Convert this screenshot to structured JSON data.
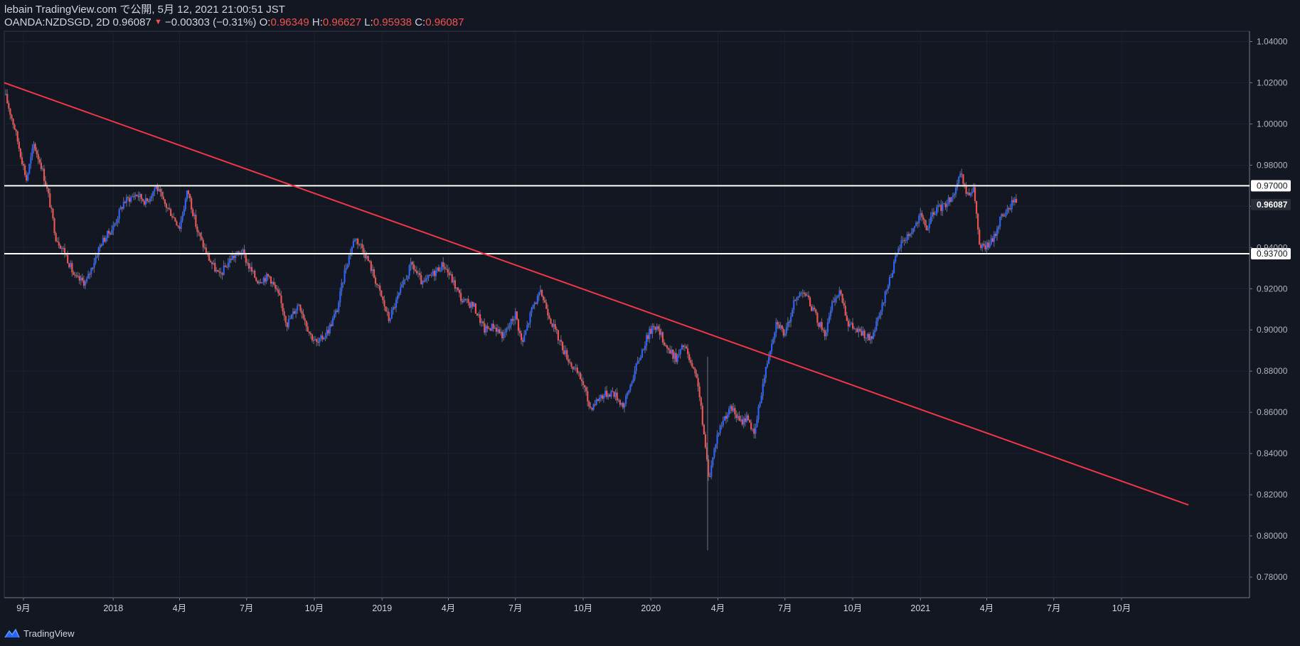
{
  "header": {
    "publisher_line": "lebain TradingView.com で公開, 5月 12, 2021 21:00:51 JST",
    "symbol": "OANDA:NZDSGD, 2D",
    "last": "0.96087",
    "change_arrow": "▼",
    "change": "−0.00303 (−0.31%)",
    "o_label": "O:",
    "o_value": "0.96349",
    "h_label": "H:",
    "h_value": "0.96627",
    "l_label": "L:",
    "l_value": "0.95938",
    "c_label": "C:",
    "c_value": "0.96087"
  },
  "footer": {
    "brand": "TradingView"
  },
  "colors": {
    "background": "#131722",
    "up": "#2962ff",
    "down": "#ef5350",
    "trendline": "#f23645",
    "hline": "#ffffff"
  },
  "chart_data": {
    "type": "candlestick",
    "symbol": "OANDA:NZDSGD",
    "interval": "2D",
    "ylim": [
      0.77,
      1.045
    ],
    "y_ticks": [
      "1.04000",
      "1.02000",
      "1.00000",
      "0.98000",
      "0.96000",
      "0.94000",
      "0.92000",
      "0.90000",
      "0.88000",
      "0.86000",
      "0.84000",
      "0.82000",
      "0.80000",
      "0.78000"
    ],
    "x_ticks": [
      "9月",
      "2018",
      "4月",
      "7月",
      "10月",
      "2019",
      "4月",
      "7月",
      "10月",
      "2020",
      "4月",
      "7月",
      "10月",
      "2021",
      "4月",
      "7月",
      "10月"
    ],
    "x_start": "2017-08-06",
    "x_ticks_dates": [
      "2017-09-01",
      "2018-01-01",
      "2018-04-01",
      "2018-07-01",
      "2018-10-01",
      "2019-01-01",
      "2019-04-01",
      "2019-07-01",
      "2019-10-01",
      "2020-01-01",
      "2020-04-01",
      "2020-07-01",
      "2020-10-01",
      "2021-01-01",
      "2021-04-01",
      "2021-07-01",
      "2021-10-01"
    ],
    "horizontal_lines": [
      {
        "price": 0.97,
        "label": "0.97000"
      },
      {
        "price": 0.937,
        "label": "0.93700"
      }
    ],
    "trendline": {
      "from": [
        "2017-08-06",
        1.02
      ],
      "to": [
        "2021-12-31",
        0.815
      ]
    },
    "last_price_label": "0.96087",
    "close_path": [
      [
        "2017-08-08",
        1.013
      ],
      [
        "2017-08-20",
        0.998
      ],
      [
        "2017-09-05",
        0.973
      ],
      [
        "2017-09-15",
        0.99
      ],
      [
        "2017-09-25",
        0.98
      ],
      [
        "2017-10-05",
        0.965
      ],
      [
        "2017-10-15",
        0.945
      ],
      [
        "2017-10-28",
        0.937
      ],
      [
        "2017-11-10",
        0.925
      ],
      [
        "2017-11-25",
        0.923
      ],
      [
        "2017-12-15",
        0.942
      ],
      [
        "2018-01-01",
        0.95
      ],
      [
        "2018-01-15",
        0.962
      ],
      [
        "2018-02-01",
        0.966
      ],
      [
        "2018-02-15",
        0.962
      ],
      [
        "2018-02-28",
        0.97
      ],
      [
        "2018-03-10",
        0.962
      ],
      [
        "2018-03-20",
        0.957
      ],
      [
        "2018-04-01",
        0.95
      ],
      [
        "2018-04-12",
        0.968
      ],
      [
        "2018-04-25",
        0.948
      ],
      [
        "2018-05-10",
        0.935
      ],
      [
        "2018-05-25",
        0.926
      ],
      [
        "2018-06-10",
        0.935
      ],
      [
        "2018-06-25",
        0.938
      ],
      [
        "2018-07-05",
        0.93
      ],
      [
        "2018-07-15",
        0.924
      ],
      [
        "2018-08-01",
        0.926
      ],
      [
        "2018-08-15",
        0.915
      ],
      [
        "2018-08-25",
        0.903
      ],
      [
        "2018-09-10",
        0.913
      ],
      [
        "2018-09-25",
        0.898
      ],
      [
        "2018-10-05",
        0.893
      ],
      [
        "2018-10-20",
        0.9
      ],
      [
        "2018-11-01",
        0.91
      ],
      [
        "2018-11-12",
        0.93
      ],
      [
        "2018-11-25",
        0.945
      ],
      [
        "2018-12-05",
        0.94
      ],
      [
        "2018-12-15",
        0.932
      ],
      [
        "2019-01-01",
        0.915
      ],
      [
        "2019-01-10",
        0.905
      ],
      [
        "2019-01-25",
        0.918
      ],
      [
        "2019-02-10",
        0.932
      ],
      [
        "2019-02-25",
        0.922
      ],
      [
        "2019-03-10",
        0.927
      ],
      [
        "2019-03-25",
        0.932
      ],
      [
        "2019-04-05",
        0.925
      ],
      [
        "2019-04-20",
        0.914
      ],
      [
        "2019-05-05",
        0.912
      ],
      [
        "2019-05-20",
        0.9
      ],
      [
        "2019-06-01",
        0.902
      ],
      [
        "2019-06-15",
        0.897
      ],
      [
        "2019-07-01",
        0.908
      ],
      [
        "2019-07-10",
        0.893
      ],
      [
        "2019-07-25",
        0.912
      ],
      [
        "2019-08-05",
        0.918
      ],
      [
        "2019-08-20",
        0.903
      ],
      [
        "2019-09-01",
        0.893
      ],
      [
        "2019-09-15",
        0.883
      ],
      [
        "2019-09-30",
        0.875
      ],
      [
        "2019-10-10",
        0.862
      ],
      [
        "2019-10-25",
        0.868
      ],
      [
        "2019-11-10",
        0.87
      ],
      [
        "2019-11-25",
        0.863
      ],
      [
        "2019-12-10",
        0.88
      ],
      [
        "2019-12-25",
        0.895
      ],
      [
        "2020-01-05",
        0.903
      ],
      [
        "2020-01-15",
        0.897
      ],
      [
        "2020-01-25",
        0.89
      ],
      [
        "2020-02-05",
        0.886
      ],
      [
        "2020-02-15",
        0.893
      ],
      [
        "2020-02-25",
        0.882
      ],
      [
        "2020-03-05",
        0.874
      ],
      [
        "2020-03-15",
        0.842
      ],
      [
        "2020-03-20",
        0.828
      ],
      [
        "2020-03-30",
        0.848
      ],
      [
        "2020-04-10",
        0.858
      ],
      [
        "2020-04-20",
        0.862
      ],
      [
        "2020-05-01",
        0.855
      ],
      [
        "2020-05-12",
        0.858
      ],
      [
        "2020-05-20",
        0.848
      ],
      [
        "2020-05-30",
        0.87
      ],
      [
        "2020-06-10",
        0.89
      ],
      [
        "2020-06-20",
        0.905
      ],
      [
        "2020-07-01",
        0.897
      ],
      [
        "2020-07-12",
        0.912
      ],
      [
        "2020-07-25",
        0.92
      ],
      [
        "2020-08-05",
        0.912
      ],
      [
        "2020-08-15",
        0.904
      ],
      [
        "2020-08-25",
        0.898
      ],
      [
        "2020-09-05",
        0.915
      ],
      [
        "2020-09-15",
        0.918
      ],
      [
        "2020-09-25",
        0.903
      ],
      [
        "2020-10-05",
        0.9
      ],
      [
        "2020-10-15",
        0.898
      ],
      [
        "2020-10-25",
        0.895
      ],
      [
        "2020-11-05",
        0.905
      ],
      [
        "2020-11-20",
        0.925
      ],
      [
        "2020-12-05",
        0.942
      ],
      [
        "2020-12-20",
        0.948
      ],
      [
        "2021-01-01",
        0.955
      ],
      [
        "2021-01-10",
        0.949
      ],
      [
        "2021-01-20",
        0.958
      ],
      [
        "2021-02-01",
        0.96
      ],
      [
        "2021-02-15",
        0.966
      ],
      [
        "2021-02-25",
        0.975
      ],
      [
        "2021-03-05",
        0.965
      ],
      [
        "2021-03-15",
        0.968
      ],
      [
        "2021-03-22",
        0.94
      ],
      [
        "2021-03-30",
        0.94
      ],
      [
        "2021-04-10",
        0.944
      ],
      [
        "2021-04-20",
        0.955
      ],
      [
        "2021-04-30",
        0.958
      ],
      [
        "2021-05-08",
        0.964
      ],
      [
        "2021-05-12",
        0.961
      ]
    ]
  }
}
